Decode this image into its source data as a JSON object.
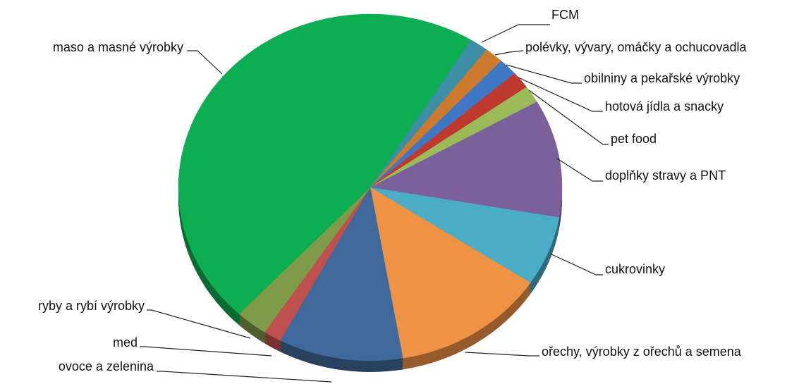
{
  "chart_data": {
    "type": "pie",
    "categories": [
      "FCM",
      "polévky, vývary, omáčky a ochucovadla",
      "obilniny a pekařské výrobky",
      "hotová jídla a snacky",
      "pet food",
      "doplňky stravy a PNT",
      "cukrovinky",
      "ořechy, výrobky z ořechů a semena",
      "ovoce a zelenina",
      "med",
      "ryby a rybí výrobky",
      "maso a masné výrobky"
    ],
    "values": [
      1.6,
      1.6,
      1.6,
      1.6,
      1.6,
      11,
      6.5,
      13,
      10.5,
      1.5,
      2.7,
      46.8
    ],
    "colors": [
      "#3b8ea3",
      "#cc7a2e",
      "#3e78c4",
      "#c0392f",
      "#9bbb59",
      "#7b619c",
      "#4bacc6",
      "#f09244",
      "#3f699a",
      "#c0504d",
      "#7f9a48",
      "#0dae51"
    ]
  }
}
